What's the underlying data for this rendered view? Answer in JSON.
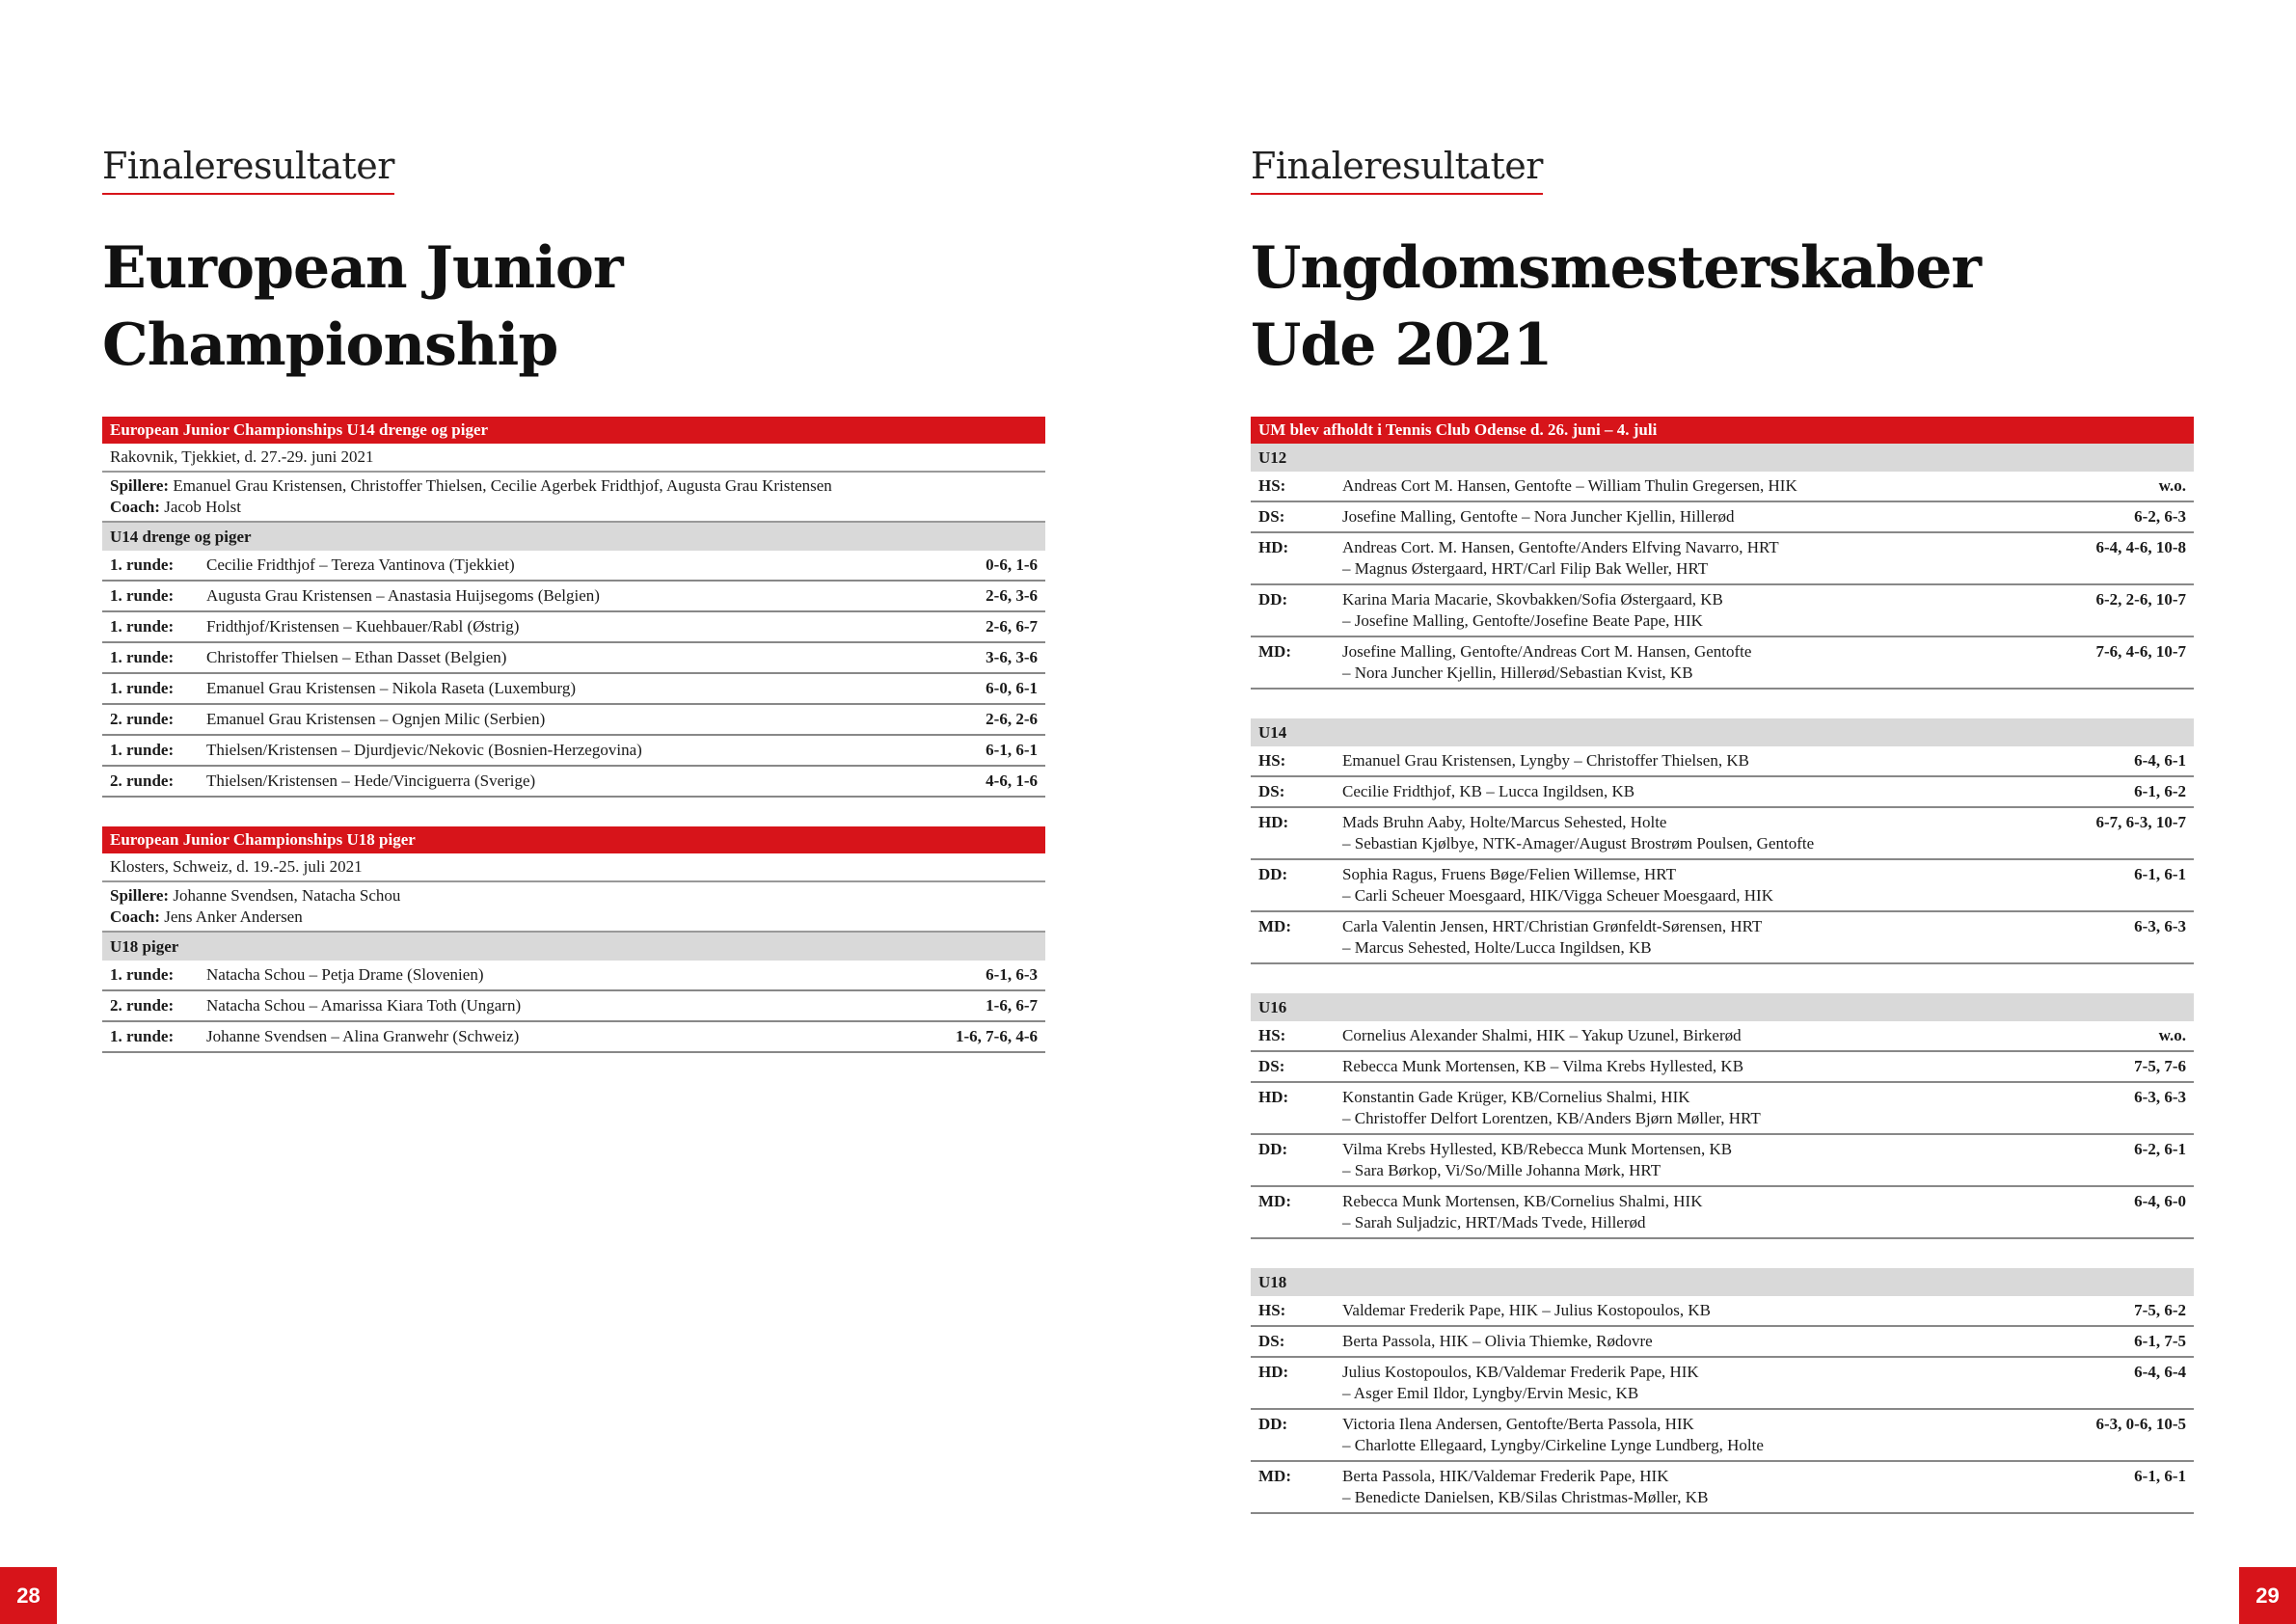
{
  "colors": {
    "accent": "#d7141a",
    "subheader": "#d9d9d9"
  },
  "left": {
    "kicker": "Finaleresultater",
    "title_lines": [
      "European Junior",
      "Championship"
    ],
    "page_number": "28",
    "tables": [
      {
        "header": "European Junior Championships U14 drenge og piger",
        "location": "Rakovnik, Tjekkiet, d. 27.-29. juni 2021",
        "players_label": "Spillere:",
        "players": "Emanuel Grau Kristensen, Christoffer Thielsen, Cecilie Agerbek Fridthjof, Augusta Grau Kristensen",
        "coach_label": "Coach:",
        "coach": "Jacob Holst",
        "sub": "U14 drenge og piger",
        "rows": [
          {
            "label": "1. runde:",
            "text": "Cecilie Fridthjof – Tereza Vantinova (Tjekkiet)",
            "score": "0-6, 1-6"
          },
          {
            "label": "1. runde:",
            "text": "Augusta Grau Kristensen – Anastasia Huijsegoms (Belgien)",
            "score": "2-6, 3-6"
          },
          {
            "label": "1. runde:",
            "text": "Fridthjof/Kristensen – Kuehbauer/Rabl (Østrig)",
            "score": "2-6, 6-7"
          },
          {
            "label": "1. runde:",
            "text": "Christoffer Thielsen – Ethan Dasset (Belgien)",
            "score": "3-6, 3-6"
          },
          {
            "label": "1. runde:",
            "text": "Emanuel Grau Kristensen – Nikola Raseta (Luxemburg)",
            "score": "6-0, 6-1"
          },
          {
            "label": "2. runde:",
            "text": "Emanuel Grau Kristensen – Ognjen Milic (Serbien)",
            "score": "2-6, 2-6"
          },
          {
            "label": "1. runde:",
            "text": "Thielsen/Kristensen – Djurdjevic/Nekovic (Bosnien-Herzegovina)",
            "score": "6-1, 6-1"
          },
          {
            "label": "2. runde:",
            "text": "Thielsen/Kristensen – Hede/Vinciguerra (Sverige)",
            "score": "4-6, 1-6"
          }
        ]
      },
      {
        "header": "European Junior Championships U18 piger",
        "location": "Klosters, Schweiz, d. 19.-25. juli 2021",
        "players_label": "Spillere:",
        "players": "Johanne Svendsen, Natacha Schou",
        "coach_label": "Coach:",
        "coach": "Jens Anker Andersen",
        "sub": "U18 piger",
        "rows": [
          {
            "label": "1. runde:",
            "text": "Natacha Schou – Petja Drame (Slovenien)",
            "score": "6-1, 6-3"
          },
          {
            "label": "2. runde:",
            "text": "Natacha Schou – Amarissa Kiara Toth (Ungarn)",
            "score": "1-6, 6-7"
          },
          {
            "label": "1. runde:",
            "text": "Johanne Svendsen – Alina Granwehr (Schweiz)",
            "score": "1-6, 7-6, 4-6"
          }
        ]
      }
    ]
  },
  "right": {
    "kicker": "Finaleresultater",
    "title_lines": [
      "Ungdomsmesterskaber",
      "Ude 2021"
    ],
    "page_number": "29",
    "header": "UM blev afholdt i Tennis Club Odense d. 26. juni – 4. juli",
    "groups": [
      {
        "name": "U12",
        "rows": [
          {
            "label": "HS:",
            "lines": [
              "Andreas Cort M. Hansen, Gentofte – William Thulin Gregersen, HIK"
            ],
            "score": "w.o."
          },
          {
            "label": "DS:",
            "lines": [
              "Josefine Malling, Gentofte – Nora Juncher Kjellin, Hillerød"
            ],
            "score": "6-2, 6-3"
          },
          {
            "label": "HD:",
            "lines": [
              "Andreas Cort. M. Hansen, Gentofte/Anders Elfving Navarro, HRT",
              "– Magnus Østergaard, HRT/Carl Filip Bak Weller, HRT"
            ],
            "score": "6-4, 4-6, 10-8"
          },
          {
            "label": "DD:",
            "lines": [
              "Karina Maria Macarie, Skovbakken/Sofia Østergaard, KB",
              "– Josefine Malling, Gentofte/Josefine Beate Pape, HIK"
            ],
            "score": "6-2, 2-6, 10-7"
          },
          {
            "label": "MD:",
            "lines": [
              "Josefine Malling, Gentofte/Andreas Cort M. Hansen, Gentofte",
              "– Nora Juncher Kjellin, Hillerød/Sebastian Kvist, KB"
            ],
            "score": "7-6, 4-6, 10-7"
          }
        ]
      },
      {
        "name": "U14",
        "rows": [
          {
            "label": "HS:",
            "lines": [
              "Emanuel Grau Kristensen, Lyngby – Christoffer Thielsen, KB"
            ],
            "score": "6-4, 6-1"
          },
          {
            "label": "DS:",
            "lines": [
              "Cecilie Fridthjof, KB – Lucca Ingildsen, KB"
            ],
            "score": "6-1, 6-2"
          },
          {
            "label": "HD:",
            "lines": [
              "Mads Bruhn Aaby, Holte/Marcus Sehested, Holte",
              "– Sebastian Kjølbye, NTK-Amager/August Brostrøm Poulsen, Gentofte"
            ],
            "score": "6-7, 6-3, 10-7"
          },
          {
            "label": "DD:",
            "lines": [
              "Sophia Ragus, Fruens Bøge/Felien Willemse, HRT",
              "– Carli Scheuer Moesgaard, HIK/Vigga Scheuer Moesgaard, HIK"
            ],
            "score": "6-1, 6-1"
          },
          {
            "label": "MD:",
            "lines": [
              "Carla Valentin Jensen, HRT/Christian Grønfeldt-Sørensen, HRT",
              "– Marcus Sehested, Holte/Lucca Ingildsen, KB"
            ],
            "score": "6-3, 6-3"
          }
        ]
      },
      {
        "name": "U16",
        "rows": [
          {
            "label": "HS:",
            "lines": [
              "Cornelius Alexander Shalmi, HIK – Yakup Uzunel, Birkerød"
            ],
            "score": "w.o."
          },
          {
            "label": "DS:",
            "lines": [
              "Rebecca Munk Mortensen, KB – Vilma Krebs Hyllested, KB"
            ],
            "score": "7-5, 7-6"
          },
          {
            "label": "HD:",
            "lines": [
              "Konstantin Gade Krüger, KB/Cornelius Shalmi, HIK",
              "– Christoffer Delfort Lorentzen, KB/Anders Bjørn Møller, HRT"
            ],
            "score": "6-3, 6-3"
          },
          {
            "label": "DD:",
            "lines": [
              "Vilma Krebs Hyllested, KB/Rebecca Munk Mortensen, KB",
              "– Sara Børkop, Vi/So/Mille Johanna Mørk, HRT"
            ],
            "score": "6-2, 6-1"
          },
          {
            "label": "MD:",
            "lines": [
              "Rebecca Munk Mortensen, KB/Cornelius Shalmi, HIK",
              "– Sarah Suljadzic, HRT/Mads Tvede, Hillerød"
            ],
            "score": "6-4, 6-0"
          }
        ]
      },
      {
        "name": "U18",
        "rows": [
          {
            "label": "HS:",
            "lines": [
              "Valdemar Frederik Pape, HIK – Julius Kostopoulos, KB"
            ],
            "score": "7-5, 6-2"
          },
          {
            "label": "DS:",
            "lines": [
              "Berta Passola, HIK – Olivia Thiemke, Rødovre"
            ],
            "score": "6-1, 7-5"
          },
          {
            "label": "HD:",
            "lines": [
              "Julius Kostopoulos, KB/Valdemar Frederik Pape, HIK",
              "– Asger Emil Ildor, Lyngby/Ervin Mesic, KB"
            ],
            "score": "6-4, 6-4"
          },
          {
            "label": "DD:",
            "lines": [
              "Victoria Ilena Andersen, Gentofte/Berta Passola, HIK",
              "– Charlotte Ellegaard, Lyngby/Cirkeline Lynge Lundberg, Holte"
            ],
            "score": "6-3, 0-6, 10-5"
          },
          {
            "label": "MD:",
            "lines": [
              "Berta Passola, HIK/Valdemar Frederik Pape, HIK",
              "– Benedicte Danielsen, KB/Silas Christmas-Møller, KB"
            ],
            "score": "6-1, 6-1"
          }
        ]
      }
    ]
  }
}
